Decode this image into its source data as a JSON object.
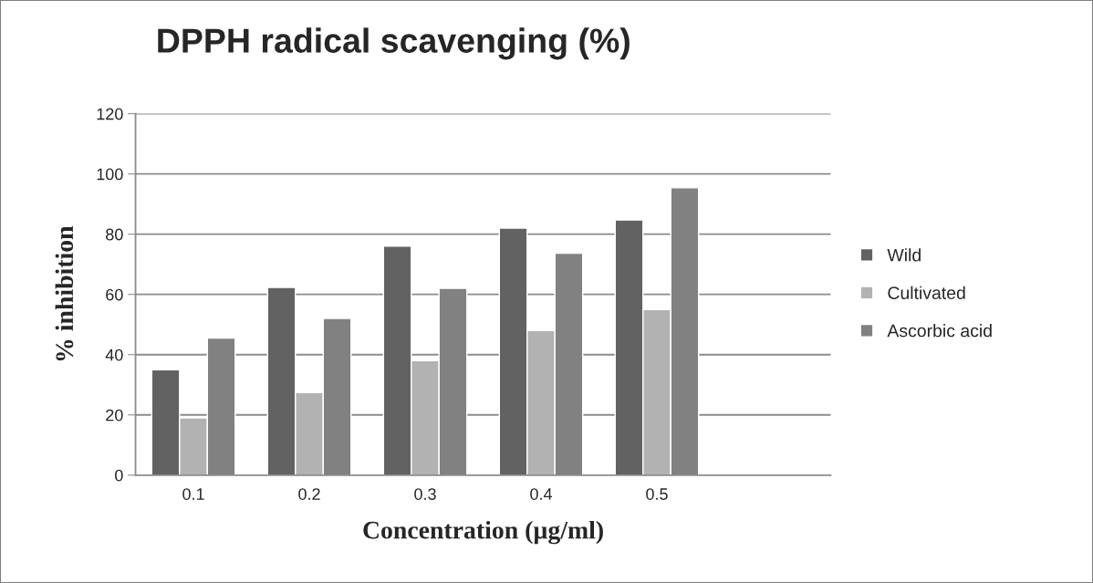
{
  "chart_data": {
    "type": "bar",
    "title": "DPPH radical scavenging (%)",
    "xlabel": "Concentration (µg/ml)",
    "ylabel": "% inhibition",
    "categories": [
      "0.1",
      "0.2",
      "0.3",
      "0.4",
      "0.5",
      null
    ],
    "series": [
      {
        "name": "Wild",
        "color": "#626262",
        "values": [
          35,
          62.3,
          76,
          82,
          84.7,
          null
        ]
      },
      {
        "name": "Cultivated",
        "color": "#b2b2b2",
        "values": [
          19,
          27.4,
          38,
          48,
          55,
          null
        ]
      },
      {
        "name": "Ascorbic acid",
        "color": "#818181",
        "values": [
          45.5,
          52,
          62,
          73.7,
          95.4,
          null
        ]
      }
    ],
    "ylim": [
      0,
      120
    ],
    "yticks": [
      0,
      20,
      40,
      60,
      80,
      100,
      120
    ],
    "grid": "y",
    "legend": "right"
  }
}
